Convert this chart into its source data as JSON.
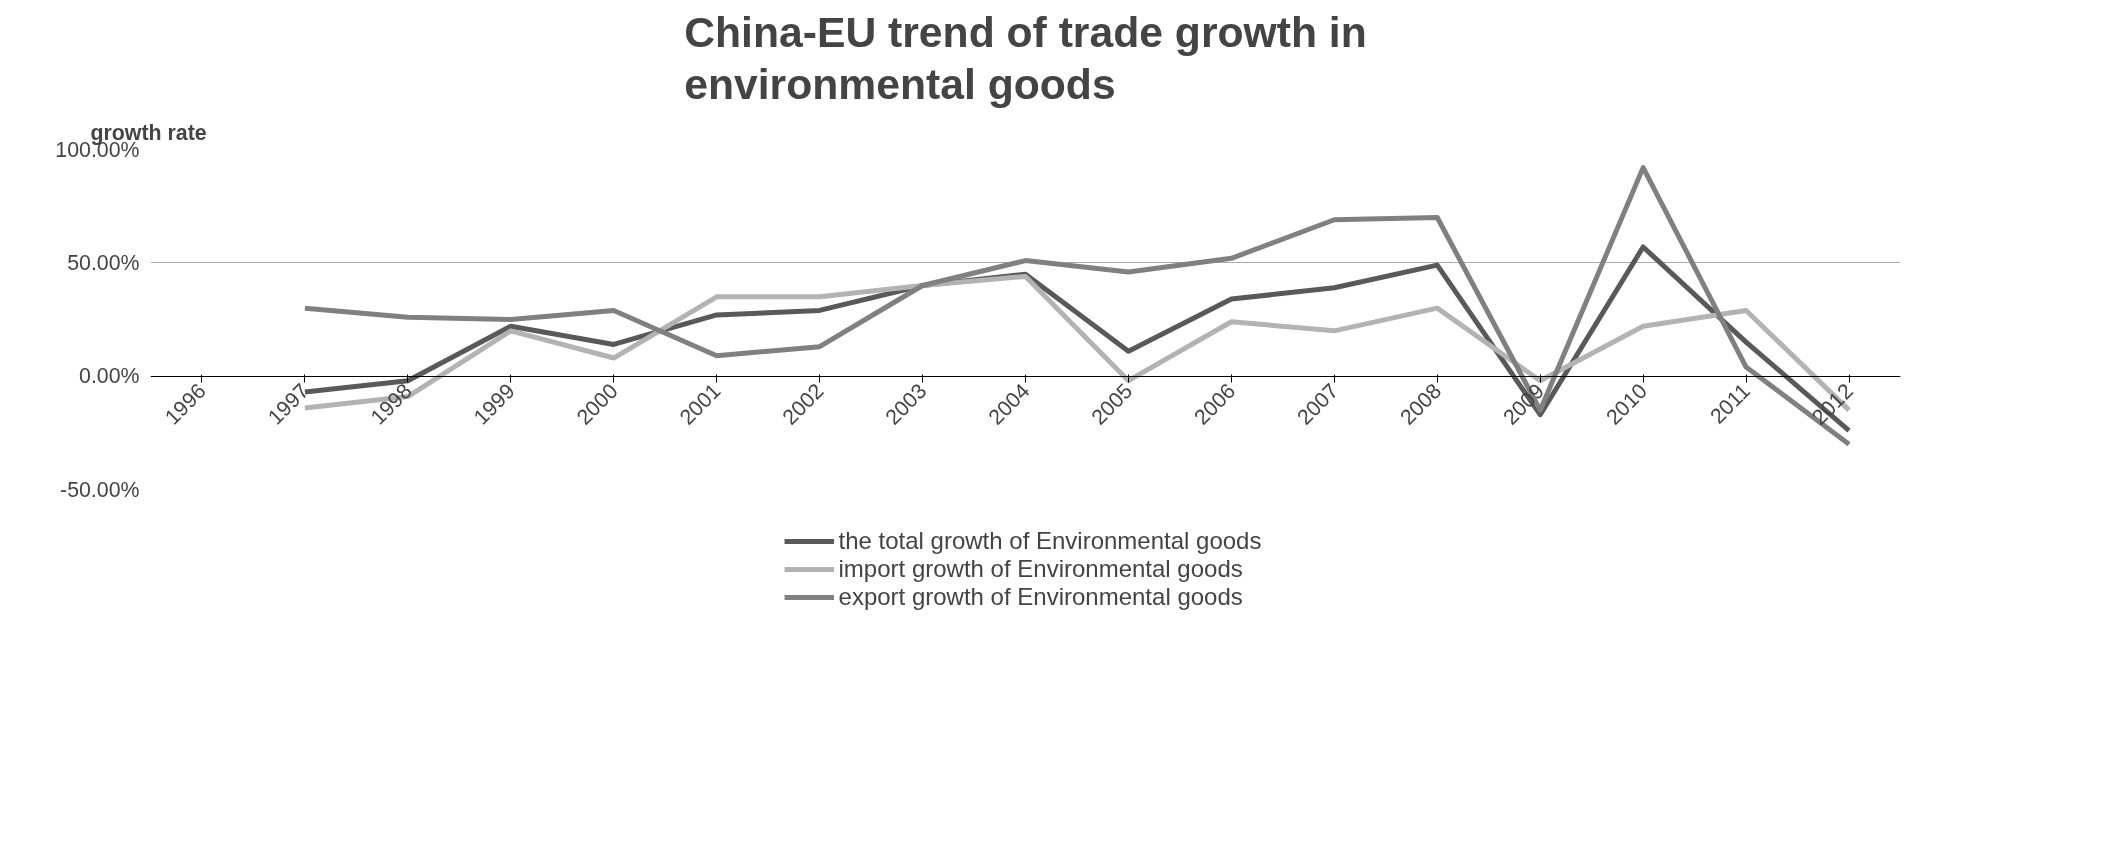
{
  "chart_data": {
    "type": "line",
    "title": "China-EU trend of trade growth in\nenvironmental goods",
    "ylabel": "growth rate",
    "categories": [
      "1996",
      "1997",
      "1998",
      "1999",
      "2000",
      "2001",
      "2002",
      "2003",
      "2004",
      "2005",
      "2006",
      "2007",
      "2008",
      "2009",
      "2010",
      "2011",
      "2012"
    ],
    "series": [
      {
        "name": "the total growth of Environmental goods",
        "color": "#595959",
        "values": [
          null,
          -7,
          -2,
          22,
          14,
          27,
          29,
          40,
          45,
          11,
          34,
          39,
          49,
          -17,
          57,
          15,
          -24
        ]
      },
      {
        "name": "import growth of Environmental goods",
        "color": "#b3b3b3",
        "values": [
          null,
          -14,
          -9,
          20,
          8,
          35,
          35,
          40,
          44,
          -2,
          24,
          20,
          30,
          -2,
          22,
          29,
          -15
        ]
      },
      {
        "name": "export growth of Environmental goods",
        "color": "#808080",
        "values": [
          null,
          30,
          26,
          25,
          29,
          9,
          13,
          40,
          51,
          46,
          52,
          69,
          70,
          -15,
          92,
          4,
          -30
        ]
      }
    ],
    "ylim": [
      -50,
      100
    ],
    "yticks": [
      {
        "value": -50,
        "label": "-50.00%"
      },
      {
        "value": 0,
        "label": "0.00%"
      },
      {
        "value": 50,
        "label": "50.00%"
      },
      {
        "value": 100,
        "label": "100.00%"
      }
    ],
    "grid": "y",
    "legend": "bottom",
    "marker": "none",
    "line_style": "solid"
  }
}
